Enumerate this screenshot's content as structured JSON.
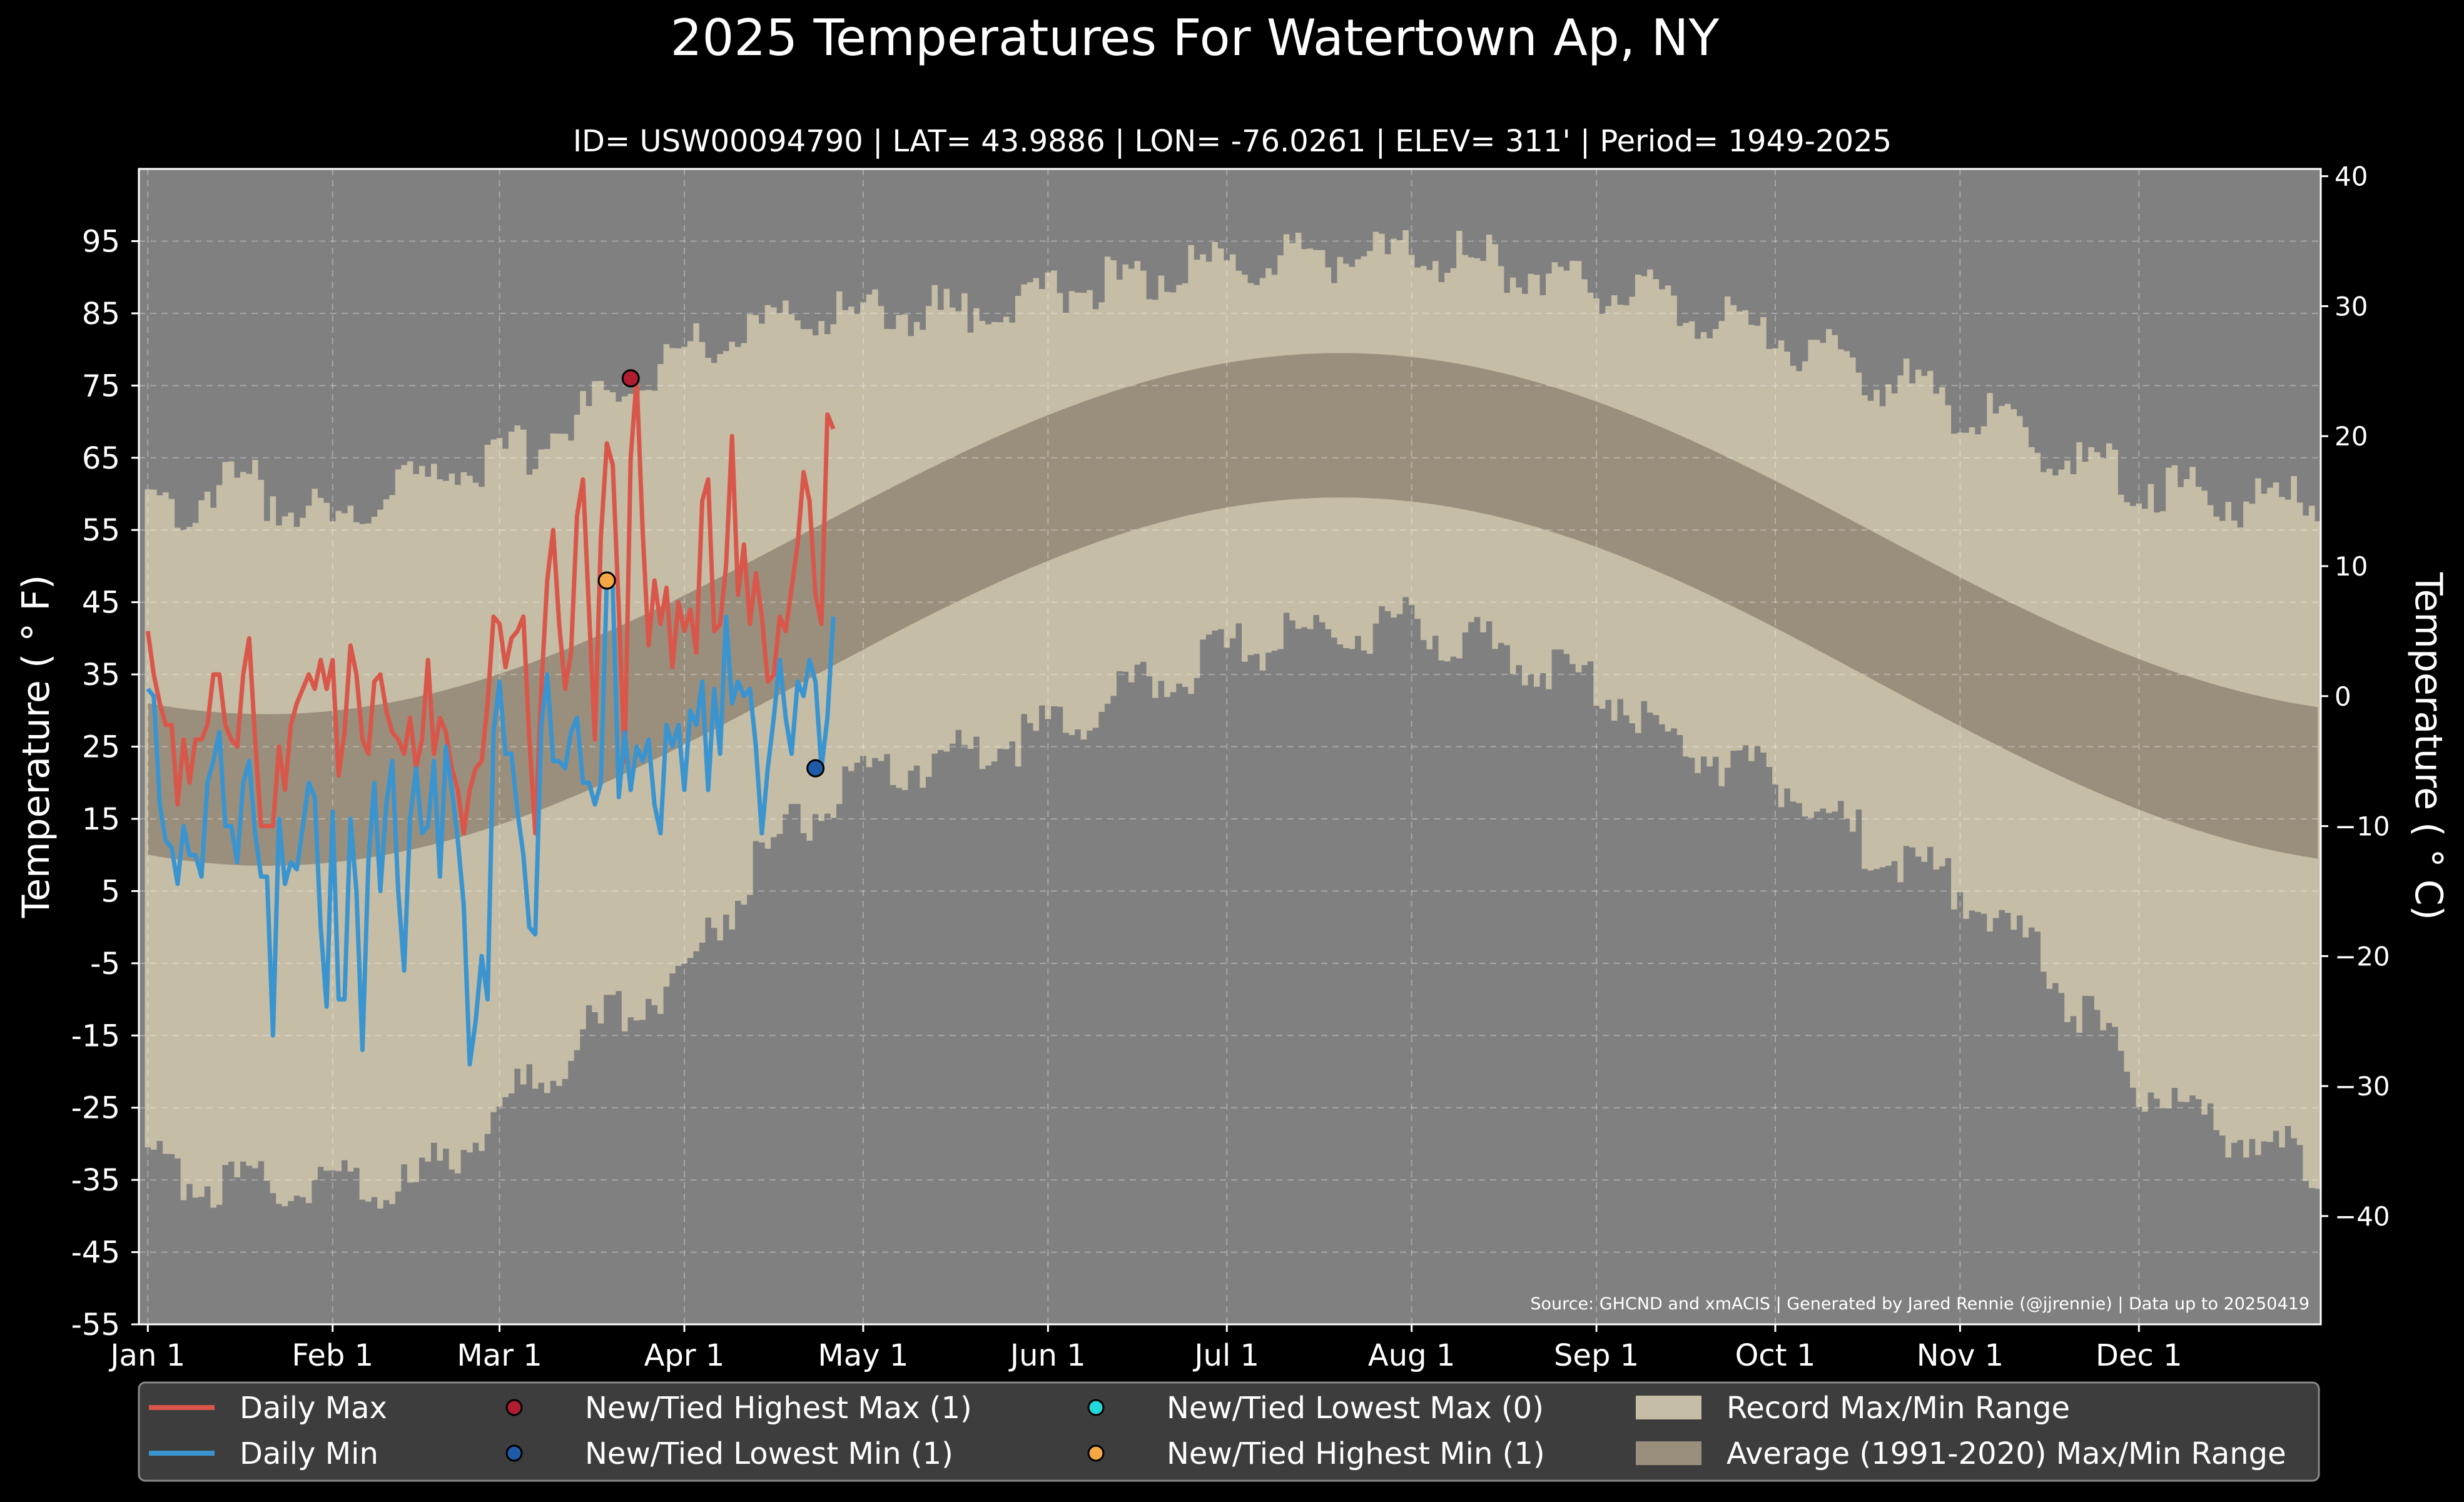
{
  "chart_data": {
    "type": "line",
    "title": "2025 Temperatures For Watertown Ap, NY",
    "subtitle": "ID= USW00094790 | LAT= 43.9886 | LON= -76.0261 | ELEV= 311' | Period= 1949-2025",
    "ylabel": "Temperature ($^\\circ$F)",
    "ylabel_display": "Temperature ( ° F)",
    "y2label_display": "Temperature ( ° C)",
    "source": "Source: GHCND and xmACIS | Generated by Jared Rennie (@jjrennie) | Data up to 20250419",
    "xlim": [
      -1.5,
      364.5
    ],
    "ylim": [
      -55,
      105
    ],
    "y2lim": [
      -48.33,
      40.56
    ],
    "yticks": [
      -55,
      -45,
      -35,
      -25,
      -15,
      -5,
      5,
      15,
      25,
      35,
      45,
      55,
      65,
      75,
      85,
      95
    ],
    "y2ticks": [
      -40,
      -30,
      -20,
      -10,
      0,
      10,
      20,
      30,
      40
    ],
    "xticks": [
      {
        "day": 0,
        "label": "Jan 1"
      },
      {
        "day": 31,
        "label": "Feb 1"
      },
      {
        "day": 59,
        "label": "Mar 1"
      },
      {
        "day": 90,
        "label": "Apr 1"
      },
      {
        "day": 120,
        "label": "May 1"
      },
      {
        "day": 151,
        "label": "Jun 1"
      },
      {
        "day": 181,
        "label": "Jul 1"
      },
      {
        "day": 212,
        "label": "Aug 1"
      },
      {
        "day": 243,
        "label": "Sep 1"
      },
      {
        "day": 273,
        "label": "Oct 1"
      },
      {
        "day": 304,
        "label": "Nov 1"
      },
      {
        "day": 334,
        "label": "Dec 1"
      }
    ],
    "grid": true,
    "legend_position": "bottom",
    "legend": [
      {
        "label": "Daily Max",
        "kind": "line",
        "color": "#d9574a"
      },
      {
        "label": "Daily Min",
        "kind": "line",
        "color": "#3a94cf"
      },
      {
        "label": "New/Tied Highest Max (1)",
        "kind": "dot",
        "color": "#b01c30"
      },
      {
        "label": "New/Tied Lowest Min (1)",
        "kind": "dot",
        "color": "#1f5aa8"
      },
      {
        "label": "New/Tied Lowest Max (0)",
        "kind": "dot",
        "color": "#22d8d8"
      },
      {
        "label": "New/Tied Highest Min (1)",
        "kind": "dot",
        "color": "#f4a742"
      },
      {
        "label": "Record Max/Min Range",
        "kind": "patch",
        "color": "#c5bda5"
      },
      {
        "label": "Average (1991-2020) Max/Min Range",
        "kind": "patch",
        "color": "#9a8f7d"
      }
    ],
    "normals": {
      "max_winter_f": 29.5,
      "max_summer_f": 79.5,
      "min_winter_f": 8.5,
      "min_summer_f": 59.5,
      "coldest_day": 20,
      "warmest_day": 200
    },
    "record_envelope": {
      "days": [
        0,
        15,
        31,
        45,
        59,
        75,
        90,
        105,
        120,
        135,
        151,
        166,
        181,
        196,
        212,
        227,
        243,
        258,
        273,
        288,
        304,
        319,
        334,
        349,
        364
      ],
      "record_max": [
        57,
        62,
        56,
        62,
        64,
        72,
        80,
        84,
        85,
        85,
        88,
        90,
        91,
        93,
        93,
        92,
        89,
        86,
        82,
        77,
        72,
        66,
        62,
        59,
        59
      ],
      "record_min": [
        -33,
        -36,
        -35,
        -36,
        -25,
        -14,
        -6,
        12,
        20,
        24,
        27,
        33,
        38,
        41,
        42,
        38,
        34,
        25,
        21,
        12,
        5,
        -6,
        -22,
        -28,
        -33
      ]
    },
    "series": [
      {
        "name": "Daily Max",
        "start_day": 0,
        "values": [
          41,
          35,
          31,
          28,
          28,
          17,
          26,
          20,
          26,
          26,
          28,
          35,
          35,
          28,
          26,
          25,
          35,
          40,
          26,
          14,
          14,
          14,
          25,
          19,
          28,
          31,
          33,
          35,
          33,
          37,
          33,
          37,
          21,
          27,
          39,
          35,
          26,
          24,
          34,
          35,
          30,
          27,
          26,
          24,
          29,
          22,
          26,
          37,
          24,
          29,
          27,
          22,
          19,
          13,
          19,
          22,
          23,
          31,
          43,
          42,
          36,
          40,
          41,
          43,
          26,
          13,
          33,
          48,
          55,
          42,
          33,
          38,
          57,
          62,
          44,
          26,
          54,
          67,
          64,
          44,
          23,
          65,
          76,
          55,
          39,
          48,
          42,
          47,
          36,
          45,
          41,
          44,
          38,
          59,
          62,
          41,
          42,
          50,
          68,
          46,
          53,
          42,
          49,
          43,
          34,
          35,
          43,
          41,
          47,
          53,
          63,
          59,
          46,
          42,
          71,
          69
        ]
      },
      {
        "name": "Daily Min",
        "start_day": 0,
        "values": [
          33,
          32,
          17,
          12,
          11,
          6,
          14,
          10,
          10,
          7,
          20,
          23,
          27,
          14,
          14,
          9,
          20,
          23,
          13,
          7,
          7,
          -15,
          15,
          6,
          9,
          8,
          14,
          20,
          18,
          0,
          -11,
          16,
          -10,
          -10,
          15,
          5,
          -17,
          9,
          20,
          5,
          17,
          23,
          5,
          -6,
          15,
          22,
          13,
          14,
          23,
          7,
          25,
          19,
          12,
          3,
          -19,
          -13,
          -4,
          -10,
          27,
          34,
          24,
          24,
          16,
          10,
          0,
          -1,
          28,
          35,
          23,
          23,
          22,
          27,
          29,
          20,
          20,
          17,
          20,
          48,
          47,
          18,
          27,
          19,
          25,
          23,
          26,
          17,
          13,
          28,
          25,
          28,
          19,
          30,
          28,
          34,
          19,
          33,
          24,
          43,
          31,
          34,
          32,
          33,
          25,
          13,
          22,
          29,
          37,
          29,
          24,
          34,
          32,
          37,
          34,
          22,
          29,
          43
        ]
      }
    ],
    "markers": [
      {
        "name": "New/Tied Highest Max",
        "day": 81,
        "value": 76,
        "color": "#b01c30"
      },
      {
        "name": "New/Tied Highest Min",
        "day": 77,
        "value": 48,
        "color": "#f4a742"
      },
      {
        "name": "New/Tied Lowest Min",
        "day": 112,
        "value": 22,
        "color": "#1f5aa8"
      }
    ]
  }
}
